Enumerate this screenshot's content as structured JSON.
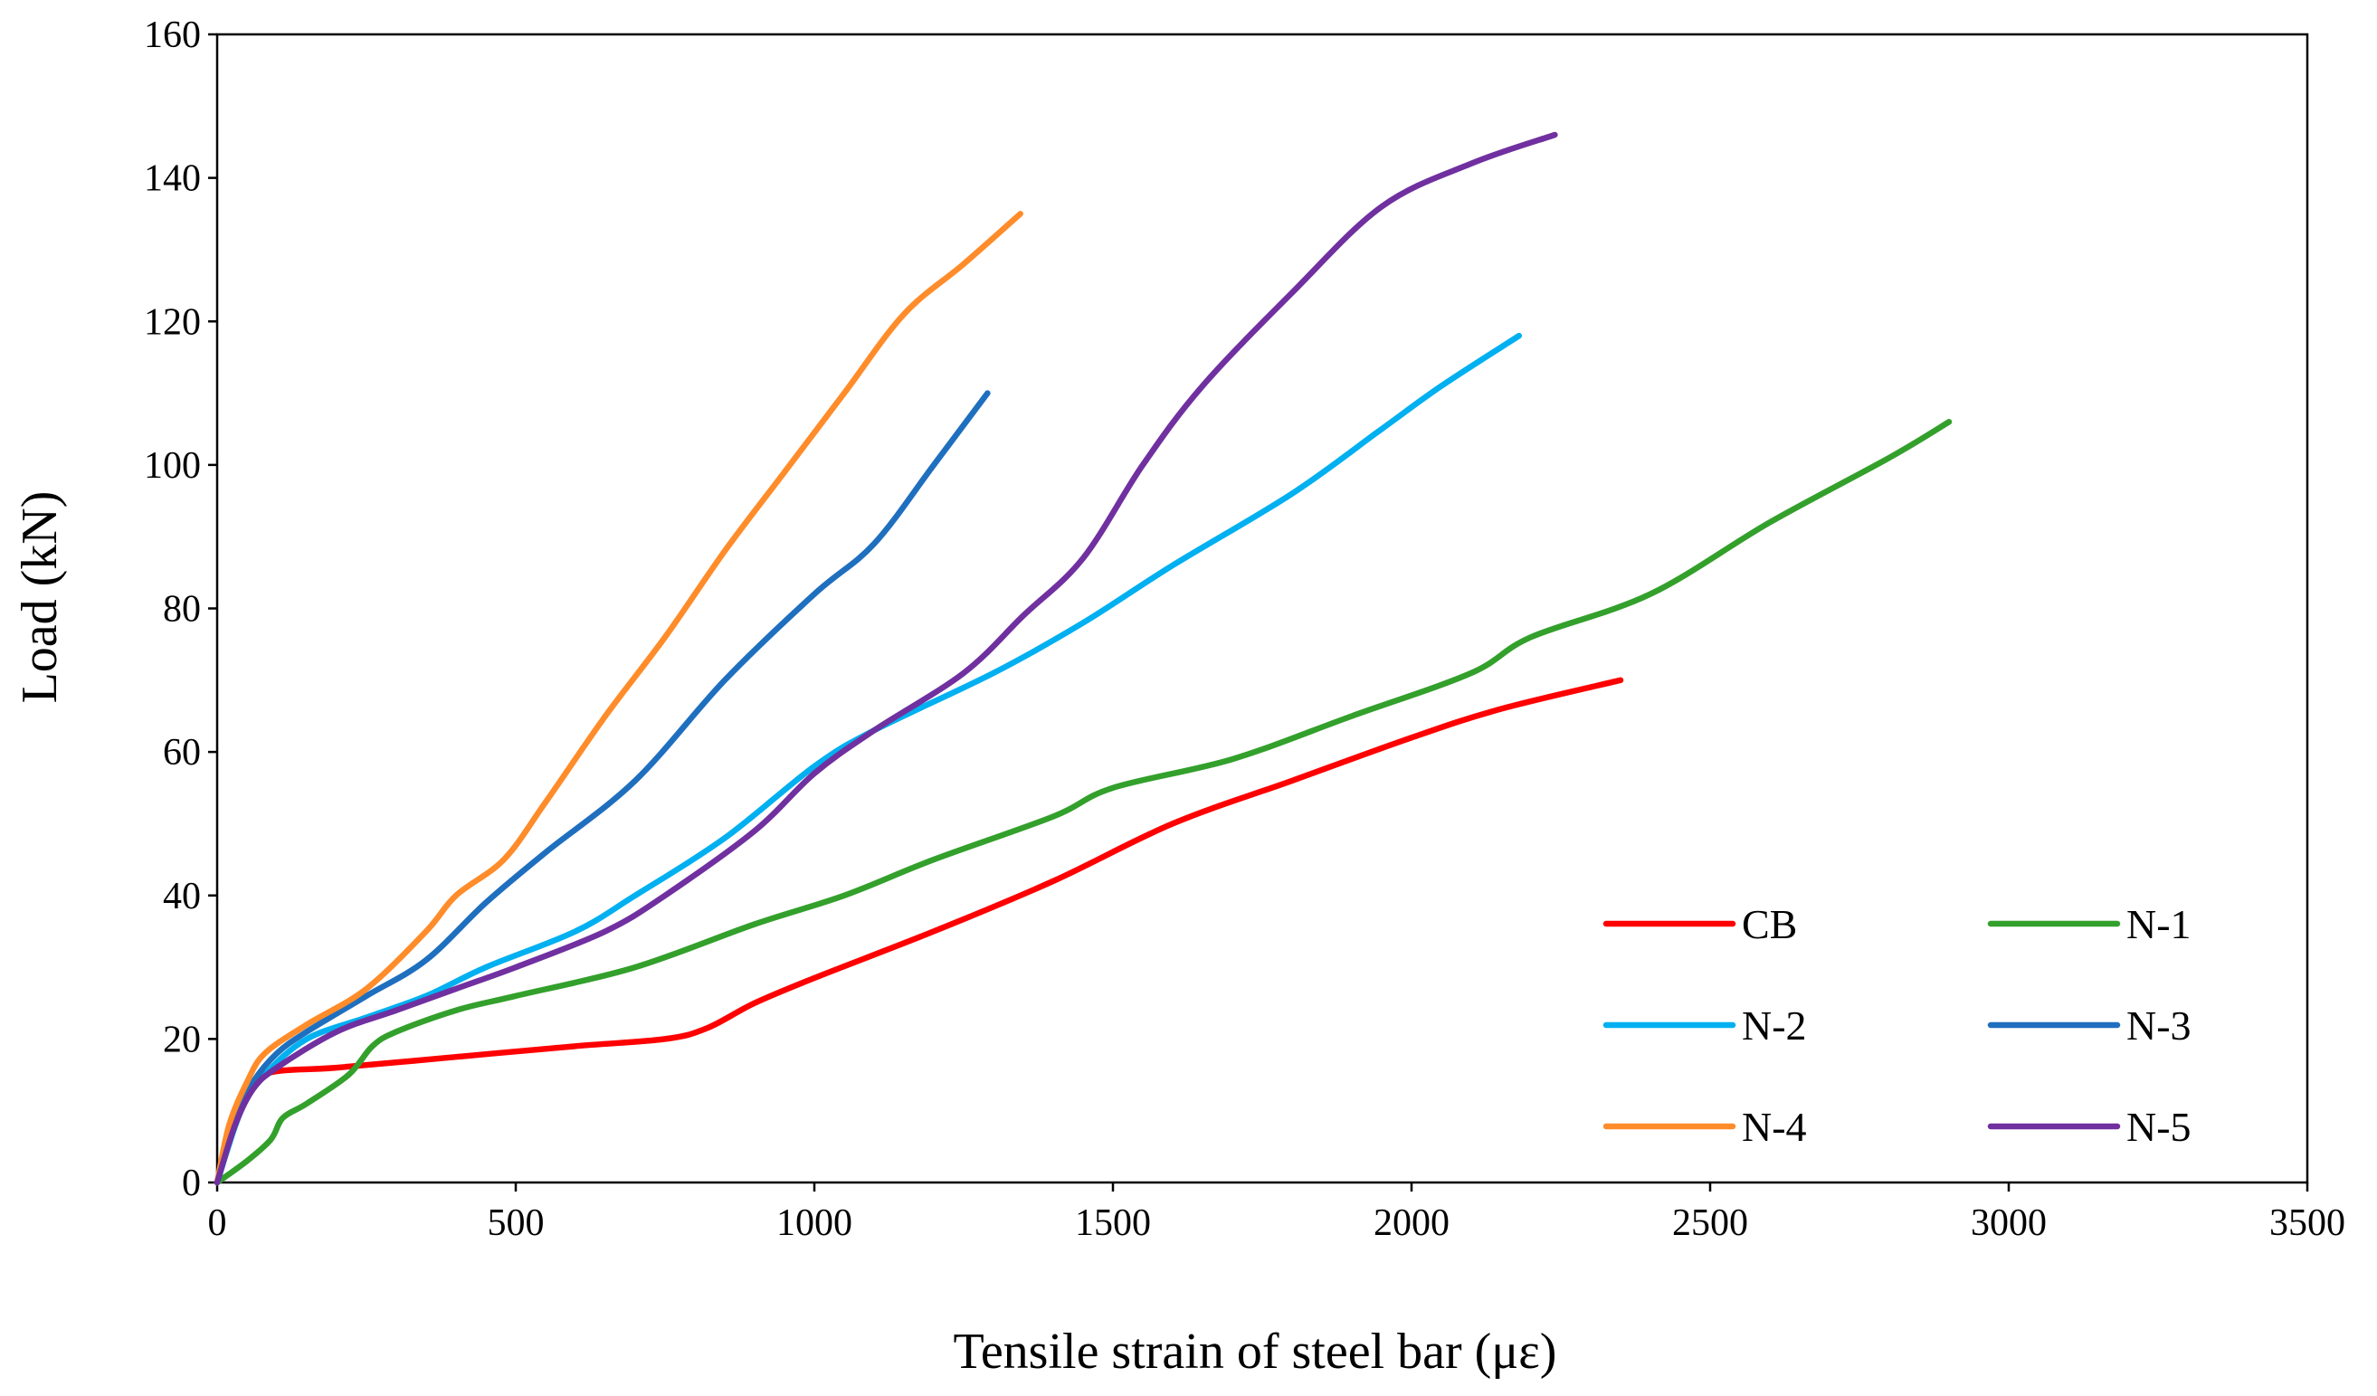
{
  "chart_data": {
    "type": "line",
    "title": "",
    "xlabel": "Tensile strain of steel bar (με)",
    "ylabel": "Load (kN)",
    "xlim": [
      0,
      3500
    ],
    "ylim": [
      0,
      160
    ],
    "x_ticks": [
      "0",
      "500",
      "1000",
      "1500",
      "2000",
      "2500",
      "3000",
      "3500"
    ],
    "y_ticks": [
      "0",
      "20",
      "40",
      "60",
      "80",
      "100",
      "120",
      "140",
      "160"
    ],
    "grid": false,
    "legend_position": "bottom-right",
    "series": [
      {
        "name": "CB",
        "color": "#FF0000",
        "x": [
          0,
          30,
          60,
          100,
          200,
          400,
          600,
          750,
          820,
          900,
          1000,
          1200,
          1400,
          1600,
          1800,
          2000,
          2150,
          2350
        ],
        "y": [
          0,
          10,
          14,
          15.5,
          16,
          17.5,
          19,
          20,
          21.5,
          25,
          28.5,
          35,
          42,
          50,
          56,
          62,
          66,
          70
        ]
      },
      {
        "name": "N-1",
        "color": "#33A02C",
        "x": [
          0,
          50,
          90,
          110,
          150,
          220,
          260,
          300,
          400,
          500,
          700,
          900,
          1050,
          1200,
          1400,
          1500,
          1700,
          1900,
          2100,
          2200,
          2400,
          2600,
          2800,
          2900
        ],
        "y": [
          0,
          3,
          6,
          9,
          11,
          15,
          19,
          21,
          24,
          26,
          30,
          36,
          40,
          45,
          51,
          55,
          59,
          65,
          71,
          76,
          82,
          92,
          101,
          106
        ]
      },
      {
        "name": "N-2",
        "color": "#00B0F0",
        "x": [
          0,
          40,
          80,
          150,
          250,
          350,
          450,
          600,
          700,
          850,
          1000,
          1100,
          1300,
          1450,
          1600,
          1800,
          1950,
          2050,
          2180
        ],
        "y": [
          0,
          10,
          15,
          20,
          23,
          26,
          30,
          35,
          40,
          48,
          58,
          63,
          71,
          78,
          86,
          96,
          105,
          111,
          118
        ]
      },
      {
        "name": "N-3",
        "color": "#1F6FBF",
        "x": [
          0,
          30,
          60,
          100,
          150,
          250,
          350,
          450,
          550,
          700,
          850,
          1000,
          1100,
          1200,
          1290
        ],
        "y": [
          0,
          9,
          14,
          18,
          21,
          26,
          31,
          39,
          46,
          56,
          70,
          82,
          89,
          100,
          110
        ]
      },
      {
        "name": "N-4",
        "color": "#FF8C2A",
        "x": [
          0,
          20,
          50,
          80,
          150,
          250,
          350,
          400,
          480,
          550,
          650,
          750,
          850,
          950,
          1050,
          1150,
          1250,
          1345
        ],
        "y": [
          0,
          8,
          14,
          18,
          22,
          27,
          35,
          40,
          45,
          53,
          65,
          76,
          88,
          99,
          110,
          121,
          128,
          135
        ]
      },
      {
        "name": "N-5",
        "color": "#7030A0",
        "x": [
          0,
          30,
          60,
          100,
          200,
          300,
          400,
          500,
          650,
          750,
          900,
          1000,
          1100,
          1250,
          1350,
          1450,
          1550,
          1650,
          1800,
          1950,
          2100,
          2240
        ],
        "y": [
          0,
          8,
          13,
          16,
          21,
          24,
          27,
          30,
          35,
          40,
          49,
          57,
          63,
          71,
          79,
          87,
          100,
          111,
          124,
          136,
          142,
          146
        ]
      }
    ]
  }
}
